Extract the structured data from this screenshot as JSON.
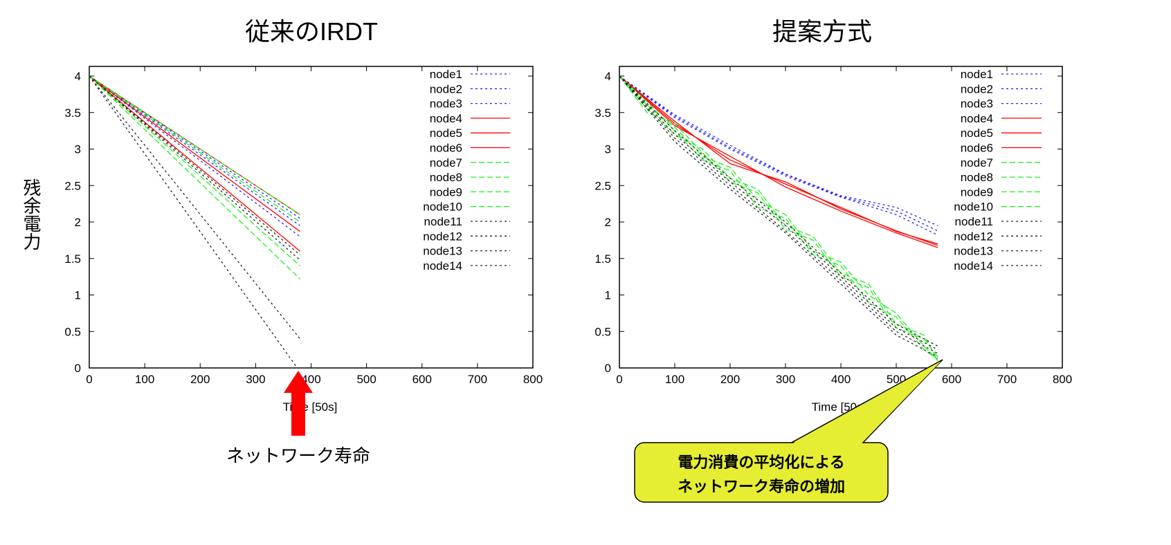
{
  "colors": {
    "blue": "#2222ff",
    "red": "#ff0000",
    "green": "#22ee22",
    "black": "#222222",
    "callout_fill": "#e6ee33",
    "arrow": "#ff0000"
  },
  "y_axis_label": "残余電力",
  "annotation_left": "ネットワーク寿命",
  "callout_right": [
    "電力消費の平均化による",
    "ネットワーク寿命の増加"
  ],
  "chart_data": [
    {
      "type": "line",
      "title": "従来のIRDT",
      "xlabel": "Time [50s]",
      "ylabel": "残余電力",
      "xlim": [
        0,
        800
      ],
      "ylim": [
        0,
        4
      ],
      "xticks": [
        0,
        100,
        200,
        300,
        400,
        500,
        600,
        700,
        800
      ],
      "yticks": [
        0,
        0.5,
        1,
        1.5,
        2,
        2.5,
        3,
        3.5,
        4
      ],
      "legend": "top-right",
      "series": [
        {
          "name": "node1",
          "color": "blue",
          "dash": "dot",
          "x": [
            0,
            380
          ],
          "y": [
            4,
            2.05
          ]
        },
        {
          "name": "node2",
          "color": "blue",
          "dash": "dot",
          "x": [
            0,
            380
          ],
          "y": [
            4,
            1.95
          ]
        },
        {
          "name": "node3",
          "color": "blue",
          "dash": "dot",
          "x": [
            0,
            380
          ],
          "y": [
            4,
            1.8
          ]
        },
        {
          "name": "node4",
          "color": "red",
          "dash": "solid",
          "x": [
            0,
            380
          ],
          "y": [
            4,
            2.1
          ]
        },
        {
          "name": "node5",
          "color": "red",
          "dash": "solid",
          "x": [
            0,
            380
          ],
          "y": [
            4,
            1.87
          ]
        },
        {
          "name": "node6",
          "color": "red",
          "dash": "solid",
          "x": [
            0,
            380
          ],
          "y": [
            4,
            1.6
          ]
        },
        {
          "name": "node7",
          "color": "green",
          "dash": "dash",
          "x": [
            0,
            380
          ],
          "y": [
            4,
            2.1
          ]
        },
        {
          "name": "node8",
          "color": "green",
          "dash": "dash",
          "x": [
            0,
            380
          ],
          "y": [
            4,
            1.4
          ]
        },
        {
          "name": "node9",
          "color": "green",
          "dash": "dash",
          "x": [
            0,
            380
          ],
          "y": [
            4,
            1.22
          ]
        },
        {
          "name": "node10",
          "color": "green",
          "dash": "dash",
          "x": [
            0,
            380
          ],
          "y": [
            4,
            2.0
          ]
        },
        {
          "name": "node11",
          "color": "black",
          "dash": "dot",
          "x": [
            0,
            380
          ],
          "y": [
            4,
            1.55
          ]
        },
        {
          "name": "node12",
          "color": "black",
          "dash": "dot",
          "x": [
            0,
            380
          ],
          "y": [
            4,
            1.48
          ]
        },
        {
          "name": "node13",
          "color": "black",
          "dash": "dot",
          "x": [
            0,
            380
          ],
          "y": [
            4,
            0.4
          ]
        },
        {
          "name": "node14",
          "color": "black",
          "dash": "dot",
          "x": [
            0,
            375
          ],
          "y": [
            4,
            0.0
          ]
        }
      ]
    },
    {
      "type": "line",
      "title": "提案方式",
      "xlabel": "Time [50s]",
      "ylabel": "残余電力",
      "xlim": [
        0,
        800
      ],
      "ylim": [
        0,
        4
      ],
      "xticks": [
        0,
        100,
        200,
        300,
        400,
        500,
        600,
        700,
        800
      ],
      "yticks": [
        0,
        0.5,
        1,
        1.5,
        2,
        2.5,
        3,
        3.5,
        4
      ],
      "legend": "top-right",
      "series": [
        {
          "name": "node1",
          "color": "blue",
          "dash": "dot",
          "x": [
            0,
            100,
            200,
            300,
            400,
            500,
            575
          ],
          "y": [
            4,
            3.45,
            3.02,
            2.65,
            2.35,
            2.15,
            1.88
          ]
        },
        {
          "name": "node2",
          "color": "blue",
          "dash": "dot",
          "x": [
            0,
            100,
            200,
            300,
            400,
            500,
            575
          ],
          "y": [
            4,
            3.47,
            3.05,
            2.66,
            2.36,
            2.2,
            1.95
          ]
        },
        {
          "name": "node3",
          "color": "blue",
          "dash": "dot",
          "x": [
            0,
            100,
            200,
            300,
            400,
            500,
            575
          ],
          "y": [
            4,
            3.43,
            3.0,
            2.63,
            2.34,
            2.1,
            1.82
          ]
        },
        {
          "name": "node4",
          "color": "red",
          "dash": "solid",
          "x": [
            0,
            100,
            200,
            300,
            400,
            500,
            575
          ],
          "y": [
            4,
            3.35,
            2.85,
            2.52,
            2.2,
            1.87,
            1.7
          ]
        },
        {
          "name": "node5",
          "color": "red",
          "dash": "solid",
          "x": [
            0,
            100,
            200,
            300,
            400,
            500,
            575
          ],
          "y": [
            4,
            3.32,
            2.9,
            2.48,
            2.15,
            1.85,
            1.65
          ]
        },
        {
          "name": "node6",
          "color": "red",
          "dash": "solid",
          "x": [
            0,
            100,
            200,
            300,
            400,
            500,
            575
          ],
          "y": [
            4,
            3.38,
            2.8,
            2.55,
            2.18,
            1.88,
            1.68
          ]
        },
        {
          "name": "node7",
          "color": "green",
          "dash": "dash",
          "x": [
            0,
            50,
            100,
            150,
            200,
            250,
            300,
            350,
            400,
            450,
            500,
            550,
            575
          ],
          "y": [
            4,
            3.6,
            3.3,
            2.9,
            2.75,
            2.3,
            2.1,
            1.6,
            1.45,
            1.0,
            0.75,
            0.3,
            0.1
          ]
        },
        {
          "name": "node8",
          "color": "green",
          "dash": "dash",
          "x": [
            0,
            50,
            100,
            150,
            200,
            250,
            300,
            350,
            400,
            450,
            500,
            550,
            575
          ],
          "y": [
            4,
            3.55,
            3.2,
            3.0,
            2.6,
            2.45,
            1.95,
            1.8,
            1.3,
            1.15,
            0.6,
            0.45,
            0.1
          ]
        },
        {
          "name": "node9",
          "color": "green",
          "dash": "dash",
          "x": [
            0,
            50,
            100,
            150,
            200,
            250,
            300,
            350,
            400,
            450,
            500,
            550,
            575
          ],
          "y": [
            4,
            3.65,
            3.25,
            2.85,
            2.7,
            2.2,
            2.05,
            1.55,
            1.4,
            0.9,
            0.7,
            0.25,
            0.12
          ]
        },
        {
          "name": "node10",
          "color": "green",
          "dash": "dash",
          "x": [
            0,
            50,
            100,
            150,
            200,
            250,
            300,
            350,
            400,
            450,
            500,
            550,
            575
          ],
          "y": [
            4,
            3.5,
            3.35,
            2.95,
            2.55,
            2.4,
            1.9,
            1.75,
            1.25,
            1.1,
            0.55,
            0.4,
            0.15
          ]
        },
        {
          "name": "node11",
          "color": "black",
          "dash": "dot",
          "x": [
            0,
            100,
            200,
            300,
            400,
            500,
            575
          ],
          "y": [
            4,
            3.2,
            2.55,
            1.95,
            1.25,
            0.55,
            0.25
          ]
        },
        {
          "name": "node12",
          "color": "black",
          "dash": "dot",
          "x": [
            0,
            100,
            200,
            300,
            400,
            500,
            575
          ],
          "y": [
            4,
            3.15,
            2.5,
            1.88,
            1.2,
            0.5,
            0.2
          ]
        },
        {
          "name": "node13",
          "color": "black",
          "dash": "dot",
          "x": [
            0,
            100,
            200,
            300,
            400,
            500,
            575
          ],
          "y": [
            4,
            3.25,
            2.6,
            2.0,
            1.3,
            0.6,
            0.3
          ]
        },
        {
          "name": "node14",
          "color": "black",
          "dash": "dot",
          "x": [
            0,
            100,
            200,
            300,
            400,
            500,
            575
          ],
          "y": [
            4,
            3.1,
            2.45,
            1.85,
            1.15,
            0.45,
            0.15
          ]
        }
      ]
    }
  ]
}
